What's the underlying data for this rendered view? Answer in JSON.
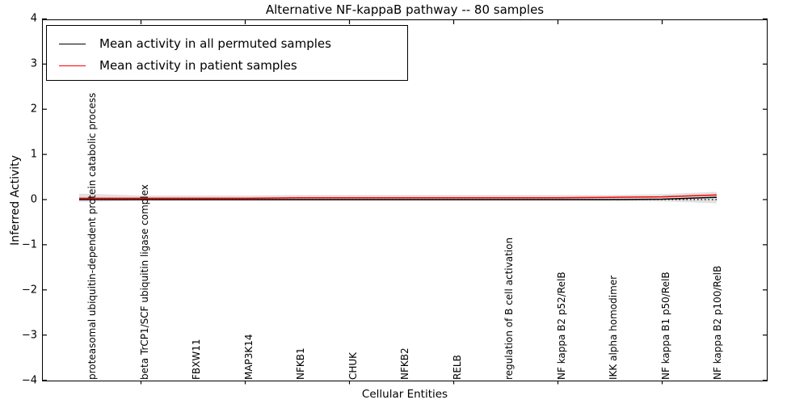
{
  "title": "Alternative NF-kappaB pathway -- 80 samples",
  "axes": {
    "xlabel": "Cellular Entities",
    "ylabel": "Inferred Activity",
    "ytick_labels": [
      "4",
      "3",
      "2",
      "1",
      "0",
      "−1",
      "−2",
      "−3",
      "−4"
    ]
  },
  "legend": {
    "items": [
      {
        "label": "Mean activity in all permuted samples",
        "color": "#000000"
      },
      {
        "label": "Mean activity in patient samples",
        "color": "#ff0000"
      }
    ]
  },
  "chart_data": {
    "type": "line",
    "title": "Alternative NF-kappaB pathway -- 80 samples",
    "xlabel": "Cellular Entities",
    "ylabel": "Inferred Activity",
    "ylim": [
      -4,
      4
    ],
    "yticks": [
      4,
      3,
      2,
      1,
      0,
      -1,
      -2,
      -3,
      -4
    ],
    "grid": false,
    "legend_position": "upper left",
    "categories": [
      "proteasomal ubiquitin-dependent protein catabolic process",
      "beta TrCP1/SCF ubiquitin ligase complex",
      "FBXW11",
      "MAP3K14",
      "NFKB1",
      "CHUK",
      "NFKB2",
      "RELB",
      "regulation of B cell activation",
      "NF kappa B2 p52/RelB",
      "IKK alpha homodimer",
      "NF kappa B1 p50/RelB",
      "NF kappa B2 p100/RelB"
    ],
    "series": [
      {
        "name": "Mean activity in all permuted samples",
        "color": "#000000",
        "values": [
          0.0,
          0.0,
          0.0,
          0.0,
          0.0,
          0.0,
          0.0,
          0.0,
          0.0,
          0.0,
          0.0,
          0.01,
          0.05
        ]
      },
      {
        "name": "Mean activity in patient samples",
        "color": "#ff0000",
        "values": [
          0.03,
          0.03,
          0.03,
          0.03,
          0.04,
          0.04,
          0.04,
          0.04,
          0.04,
          0.04,
          0.05,
          0.06,
          0.1
        ]
      }
    ],
    "band": {
      "name": "permuted samples spread",
      "color": "#d9d9d9",
      "upper": [
        0.13,
        0.09,
        0.09,
        0.09,
        0.1,
        0.1,
        0.1,
        0.1,
        0.1,
        0.1,
        0.1,
        0.12,
        0.17
      ],
      "lower": [
        -0.05,
        -0.03,
        -0.03,
        -0.03,
        -0.03,
        -0.03,
        -0.03,
        -0.03,
        -0.03,
        -0.03,
        -0.03,
        -0.04,
        -0.08
      ]
    },
    "baseline": {
      "value": 0,
      "style": "dotted",
      "color": "#000000"
    }
  }
}
